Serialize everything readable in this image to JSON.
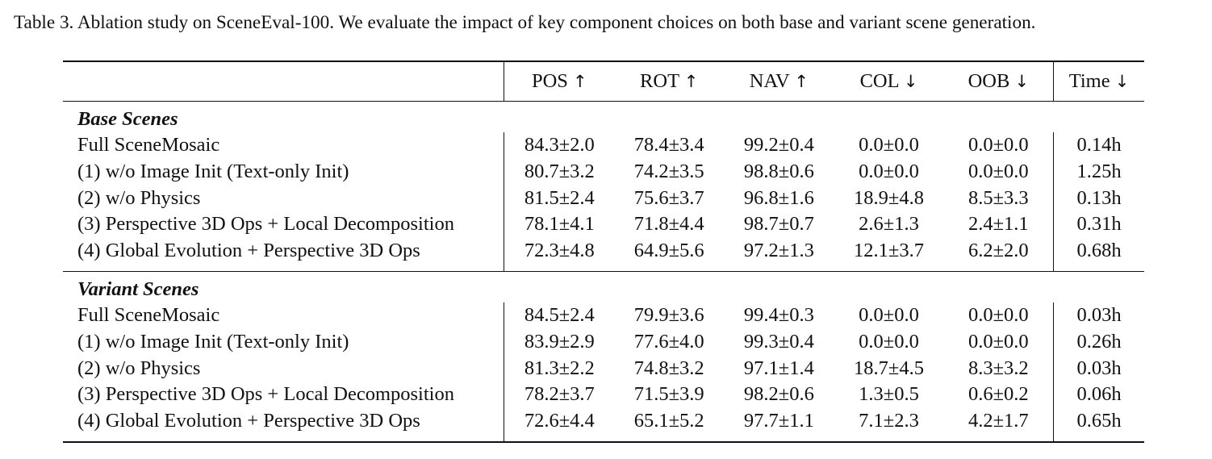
{
  "caption": "Table 3. Ablation study on SceneEval-100. We evaluate the impact of key component choices on both base and variant scene generation.",
  "columns": [
    {
      "name": "POS",
      "arrow": "↑"
    },
    {
      "name": "ROT",
      "arrow": "↑"
    },
    {
      "name": "NAV",
      "arrow": "↑"
    },
    {
      "name": "COL",
      "arrow": "↓"
    },
    {
      "name": "OOB",
      "arrow": "↓"
    },
    {
      "name": "Time",
      "arrow": "↓"
    }
  ],
  "sections": [
    {
      "title": "Base Scenes",
      "rows": [
        {
          "label": "Full SceneMosaic",
          "values": [
            "84.3±2.0",
            "78.4±3.4",
            "99.2±0.4",
            "0.0±0.0",
            "0.0±0.0",
            "0.14h"
          ]
        },
        {
          "label": "(1) w/o Image Init (Text-only Init)",
          "values": [
            "80.7±3.2",
            "74.2±3.5",
            "98.8±0.6",
            "0.0±0.0",
            "0.0±0.0",
            "1.25h"
          ]
        },
        {
          "label": "(2) w/o Physics",
          "values": [
            "81.5±2.4",
            "75.6±3.7",
            "96.8±1.6",
            "18.9±4.8",
            "8.5±3.3",
            "0.13h"
          ]
        },
        {
          "label": "(3) Perspective 3D Ops + Local Decomposition",
          "values": [
            "78.1±4.1",
            "71.8±4.4",
            "98.7±0.7",
            "2.6±1.3",
            "2.4±1.1",
            "0.31h"
          ]
        },
        {
          "label": "(4) Global Evolution + Perspective 3D Ops",
          "values": [
            "72.3±4.8",
            "64.9±5.6",
            "97.2±1.3",
            "12.1±3.7",
            "6.2±2.0",
            "0.68h"
          ]
        }
      ]
    },
    {
      "title": "Variant Scenes",
      "rows": [
        {
          "label": "Full SceneMosaic",
          "values": [
            "84.5±2.4",
            "79.9±3.6",
            "99.4±0.3",
            "0.0±0.0",
            "0.0±0.0",
            "0.03h"
          ]
        },
        {
          "label": "(1) w/o Image Init (Text-only Init)",
          "values": [
            "83.9±2.9",
            "77.6±4.0",
            "99.3±0.4",
            "0.0±0.0",
            "0.0±0.0",
            "0.26h"
          ]
        },
        {
          "label": "(2) w/o Physics",
          "values": [
            "81.3±2.2",
            "74.8±3.2",
            "97.1±1.4",
            "18.7±4.5",
            "8.3±3.2",
            "0.03h"
          ]
        },
        {
          "label": "(3) Perspective 3D Ops + Local Decomposition",
          "values": [
            "78.2±3.7",
            "71.5±3.9",
            "98.2±0.6",
            "1.3±0.5",
            "0.6±0.2",
            "0.06h"
          ]
        },
        {
          "label": "(4) Global Evolution + Perspective 3D Ops",
          "values": [
            "72.6±4.4",
            "65.1±5.2",
            "97.7±1.1",
            "7.1±2.3",
            "4.2±1.7",
            "0.65h"
          ]
        }
      ]
    }
  ]
}
